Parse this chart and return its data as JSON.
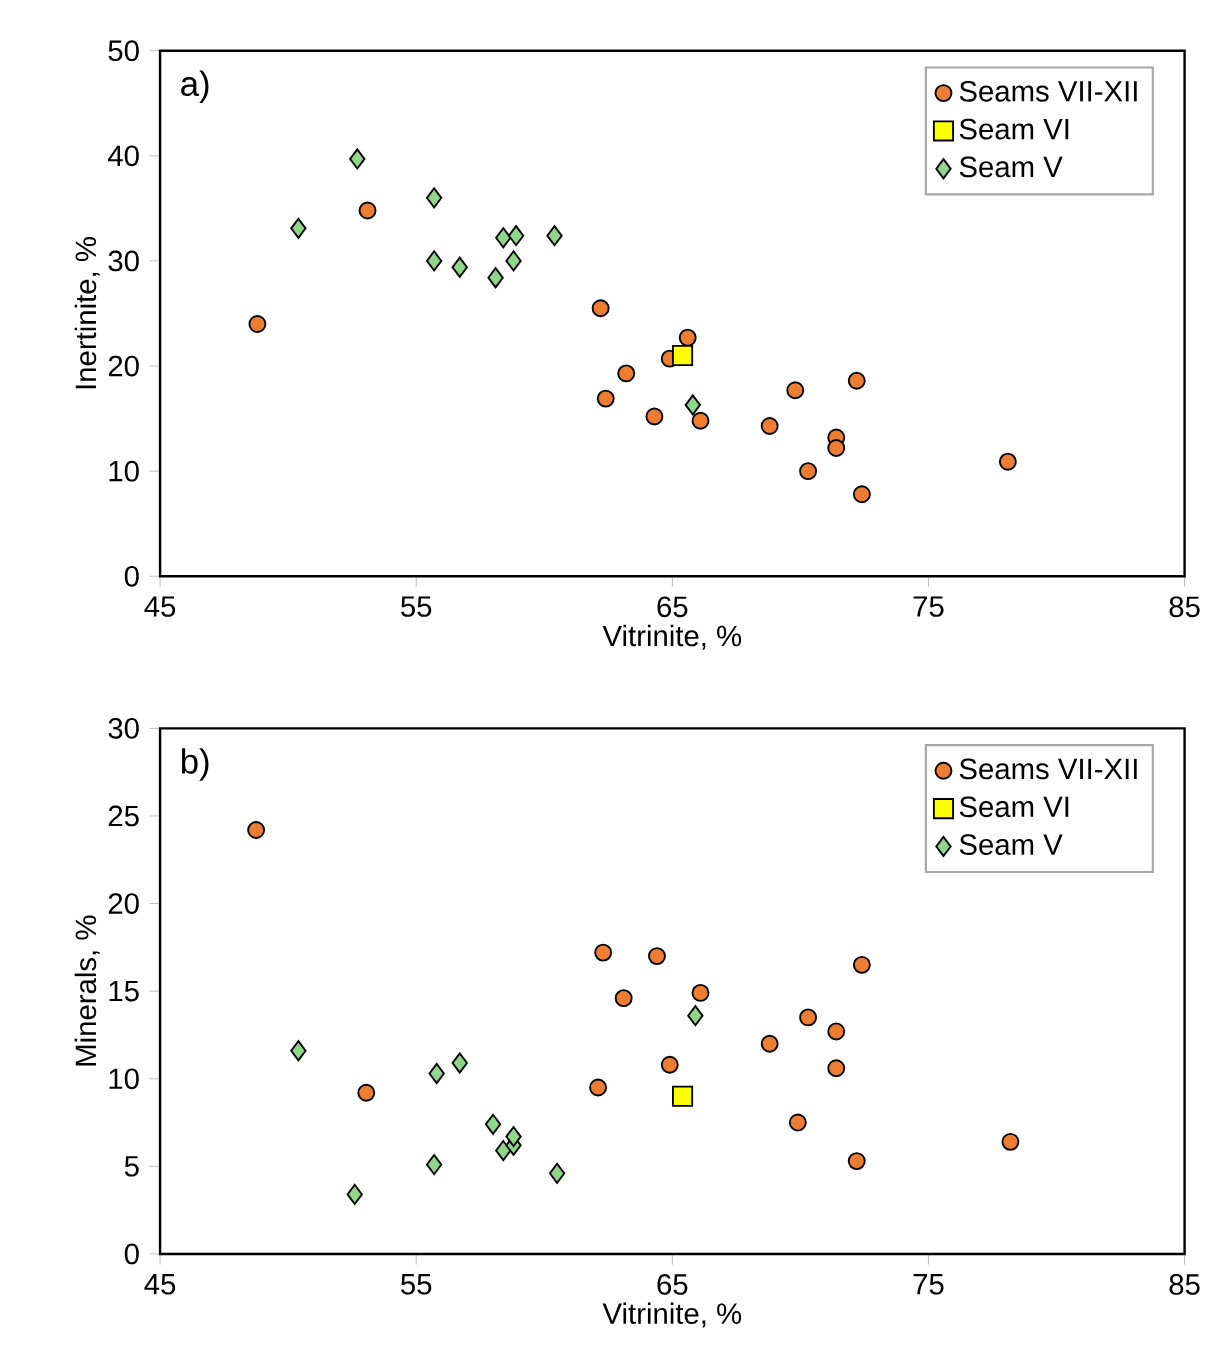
{
  "chart_data": [
    {
      "type": "scatter",
      "xlabel": "Vitrinite, %",
      "ylabel": "Inertinite, %",
      "annotations": [
        "a)"
      ],
      "xlim": [
        45,
        85
      ],
      "xticks": [
        45,
        55,
        65,
        75,
        85
      ],
      "ylim": [
        0,
        50
      ],
      "yticks": [
        0,
        10,
        20,
        30,
        40,
        50
      ],
      "grid": false,
      "legend": "top right",
      "series": [
        {
          "name": "Seams VII-XII",
          "color": "#ed7d31",
          "marker": "circle",
          "x": [
            48.8,
            53.1,
            62.2,
            62.4,
            63.2,
            64.3,
            64.9,
            65.6,
            66.1,
            68.8,
            69.8,
            70.3,
            71.4,
            71.4,
            72.2,
            72.4,
            78.1
          ],
          "values": [
            24.0,
            34.8,
            25.5,
            16.9,
            19.3,
            15.2,
            20.7,
            22.7,
            14.8,
            14.3,
            17.7,
            10.0,
            13.2,
            12.2,
            18.6,
            7.8,
            10.9
          ]
        },
        {
          "name": "Seam VI",
          "color": "#ffff00",
          "marker": "square",
          "x": [
            65.4
          ],
          "values": [
            21.0
          ]
        },
        {
          "name": "Seam V",
          "color": "#8fd68a",
          "marker": "diamond",
          "x": [
            50.4,
            52.7,
            55.7,
            55.7,
            56.7,
            58.1,
            58.4,
            58.9,
            58.8,
            60.4,
            65.8
          ],
          "values": [
            33.1,
            39.7,
            36.0,
            30.0,
            29.4,
            28.4,
            32.2,
            32.4,
            30.0,
            32.4,
            16.3
          ]
        }
      ]
    },
    {
      "type": "scatter",
      "xlabel": "Vitrinite, %",
      "ylabel": "Minerals, %",
      "annotations": [
        "b)"
      ],
      "xlim": [
        45,
        85
      ],
      "xticks": [
        45,
        55,
        65,
        75,
        85
      ],
      "ylim": [
        0,
        30
      ],
      "yticks": [
        0,
        5,
        10,
        15,
        20,
        25,
        30
      ],
      "grid": false,
      "legend": "top right",
      "series": [
        {
          "name": "Seams VII-XII",
          "color": "#ed7d31",
          "marker": "circle",
          "x": [
            48.75,
            53.05,
            62.1,
            62.3,
            63.1,
            64.4,
            64.9,
            65.5,
            66.1,
            68.8,
            69.9,
            70.3,
            71.4,
            71.4,
            72.4,
            72.2,
            78.2
          ],
          "values": [
            24.2,
            9.2,
            9.5,
            17.2,
            14.6,
            17.0,
            10.8,
            null,
            14.9,
            12.0,
            7.5,
            13.5,
            12.7,
            10.6,
            16.5,
            5.3,
            6.4
          ]
        },
        {
          "name": "Seam VI",
          "color": "#ffff00",
          "marker": "square",
          "x": [
            65.4
          ],
          "values": [
            9.0
          ]
        },
        {
          "name": "Seam V",
          "color": "#8fd68a",
          "marker": "diamond",
          "x": [
            50.4,
            52.6,
            55.8,
            55.7,
            56.7,
            58.0,
            58.4,
            58.8,
            58.8,
            60.5,
            65.9
          ],
          "values": [
            11.6,
            3.4,
            10.3,
            5.1,
            10.9,
            7.4,
            5.9,
            6.2,
            6.7,
            4.6,
            13.6
          ]
        }
      ]
    }
  ]
}
